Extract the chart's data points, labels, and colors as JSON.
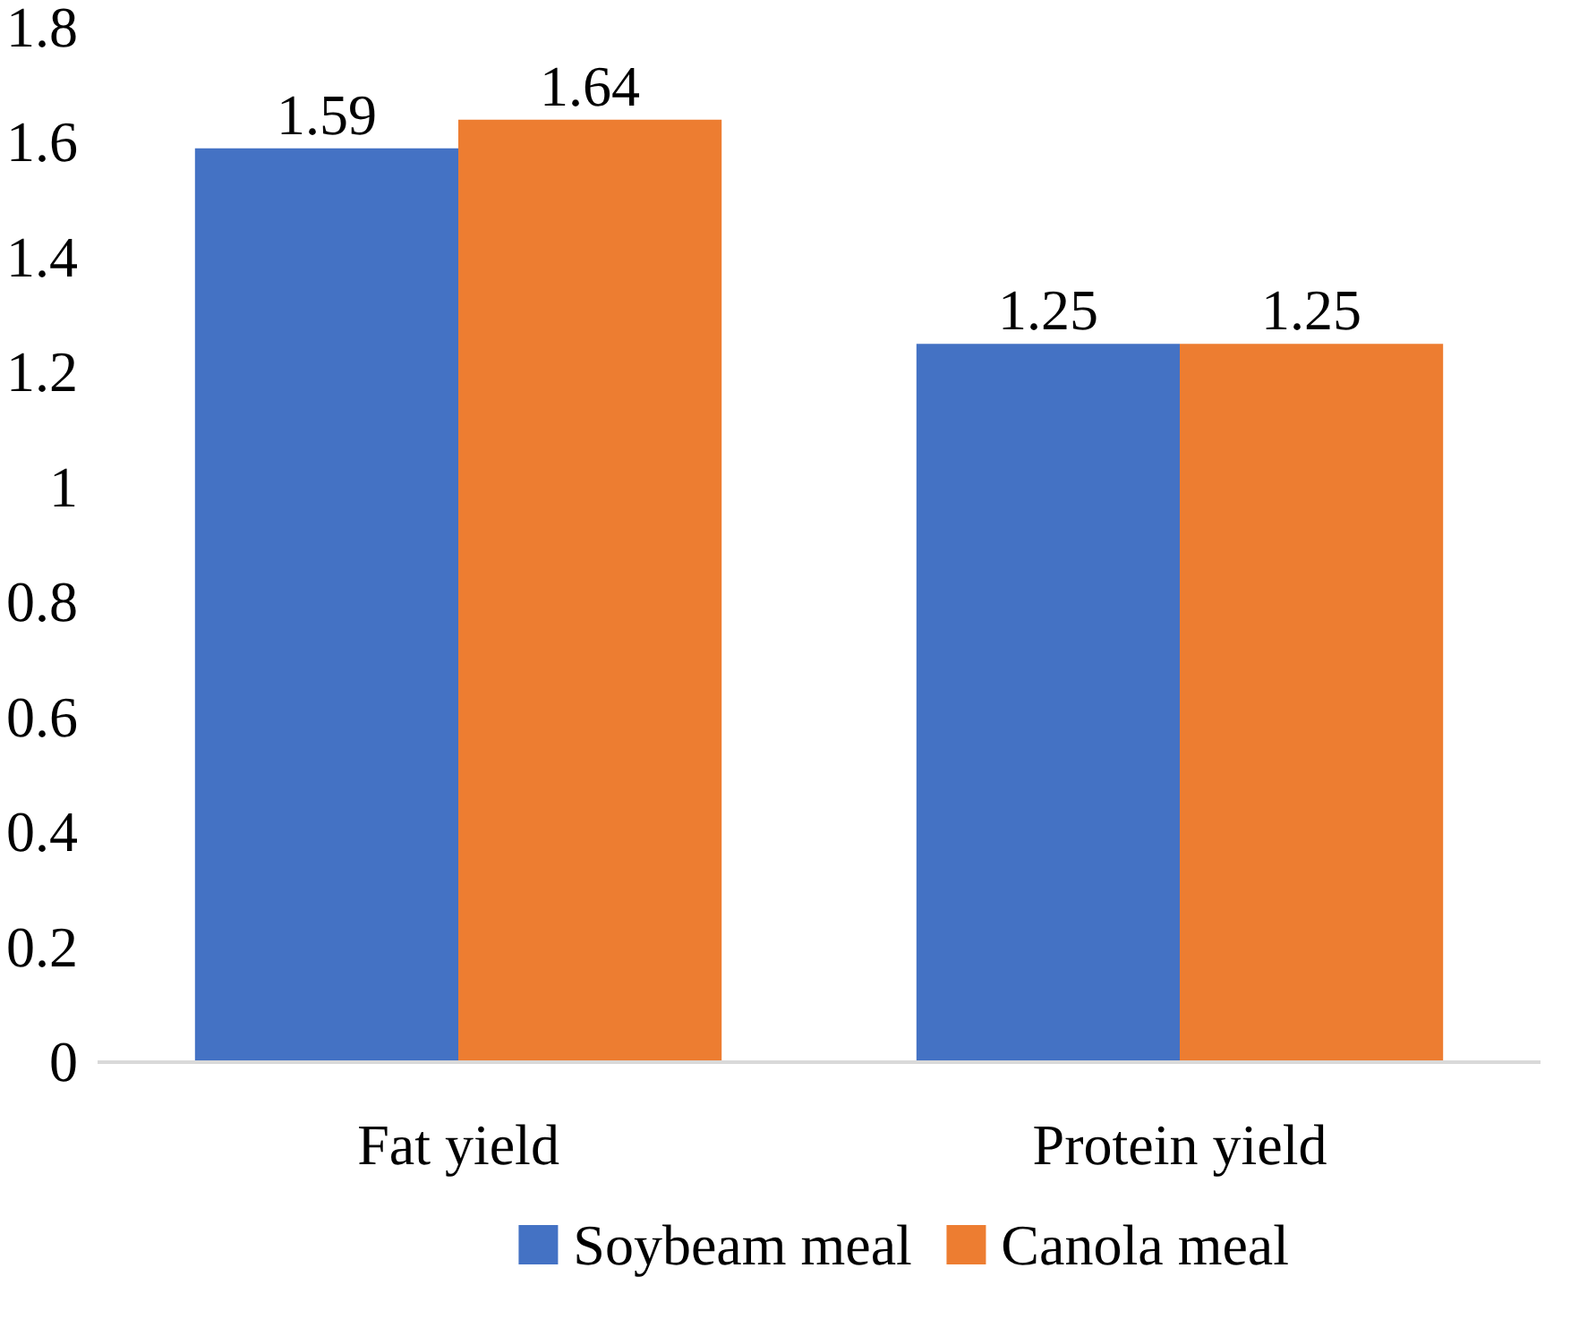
{
  "chart_data": {
    "type": "bar",
    "categories": [
      "Fat yield",
      "Protein yield"
    ],
    "series": [
      {
        "name": "Soybeam meal",
        "color": "#4472c4",
        "values": [
          1.59,
          1.25
        ]
      },
      {
        "name": "Canola meal",
        "color": "#ed7d31",
        "values": [
          1.64,
          1.25
        ]
      }
    ],
    "ylim": [
      0,
      1.8
    ],
    "yticks": [
      0,
      0.2,
      0.4,
      0.6,
      0.8,
      1,
      1.2,
      1.4,
      1.6,
      1.8
    ],
    "grid": false,
    "legend": "bottom",
    "data_labels": true
  }
}
